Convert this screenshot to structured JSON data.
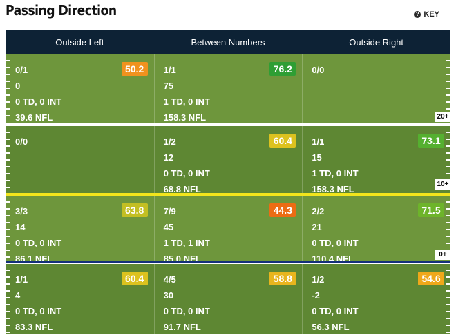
{
  "page": {
    "title": "Passing Direction",
    "key_label": "KEY"
  },
  "chart_data": {
    "type": "table",
    "columns": [
      "Outside Left",
      "Between Numbers",
      "Outside Right"
    ],
    "rows": [
      {
        "marker": "20+",
        "cells": [
          {
            "att": "0/1",
            "yards": "0",
            "td_int": "0 TD, 0 INT",
            "rating": "39.6 NFL",
            "grade": 50.2,
            "grade_color": "#f0921e"
          },
          {
            "att": "1/1",
            "yards": "75",
            "td_int": "1 TD, 0 INT",
            "rating": "158.3 NFL",
            "grade": 76.2,
            "grade_color": "#2f9e34"
          },
          {
            "att": "0/0",
            "yards": "",
            "td_int": "",
            "rating": "",
            "grade": null,
            "grade_color": ""
          }
        ]
      },
      {
        "marker": "10+",
        "cells": [
          {
            "att": "0/0",
            "yards": "",
            "td_int": "",
            "rating": "",
            "grade": null,
            "grade_color": ""
          },
          {
            "att": "1/2",
            "yards": "12",
            "td_int": "0 TD, 0 INT",
            "rating": "68.8 NFL",
            "grade": 60.4,
            "grade_color": "#dcc21f"
          },
          {
            "att": "1/1",
            "yards": "15",
            "td_int": "1 TD, 0 INT",
            "rating": "158.3 NFL",
            "grade": 73.1,
            "grade_color": "#55b030"
          }
        ]
      },
      {
        "marker": "0+",
        "cells": [
          {
            "att": "3/3",
            "yards": "14",
            "td_int": "0 TD, 0 INT",
            "rating": "86.1 NFL",
            "grade": 63.8,
            "grade_color": "#c3bf23"
          },
          {
            "att": "7/9",
            "yards": "45",
            "td_int": "1 TD, 1 INT",
            "rating": "85.0 NFL",
            "grade": 44.3,
            "grade_color": "#ec6c14"
          },
          {
            "att": "2/2",
            "yards": "21",
            "td_int": "0 TD, 0 INT",
            "rating": "110.4 NFL",
            "grade": 71.5,
            "grade_color": "#6db42a"
          }
        ]
      },
      {
        "marker": "",
        "cells": [
          {
            "att": "1/1",
            "yards": "4",
            "td_int": "0 TD, 0 INT",
            "rating": "83.3 NFL",
            "grade": 60.4,
            "grade_color": "#dcc21f"
          },
          {
            "att": "4/5",
            "yards": "30",
            "td_int": "0 TD, 0 INT",
            "rating": "91.7 NFL",
            "grade": 58.8,
            "grade_color": "#e8b51e"
          },
          {
            "att": "1/2",
            "yards": "-2",
            "td_int": "0 TD, 0 INT",
            "rating": "56.3 NFL",
            "grade": 54.6,
            "grade_color": "#f0a81a"
          }
        ]
      }
    ],
    "colors": {
      "field_light": "#6e963c",
      "field_dark": "#5e8733",
      "header_bg": "#0d2235",
      "line_20": "#ffffff",
      "line_10": "#f2e51c",
      "line_scrimmage": "#13307a"
    }
  }
}
